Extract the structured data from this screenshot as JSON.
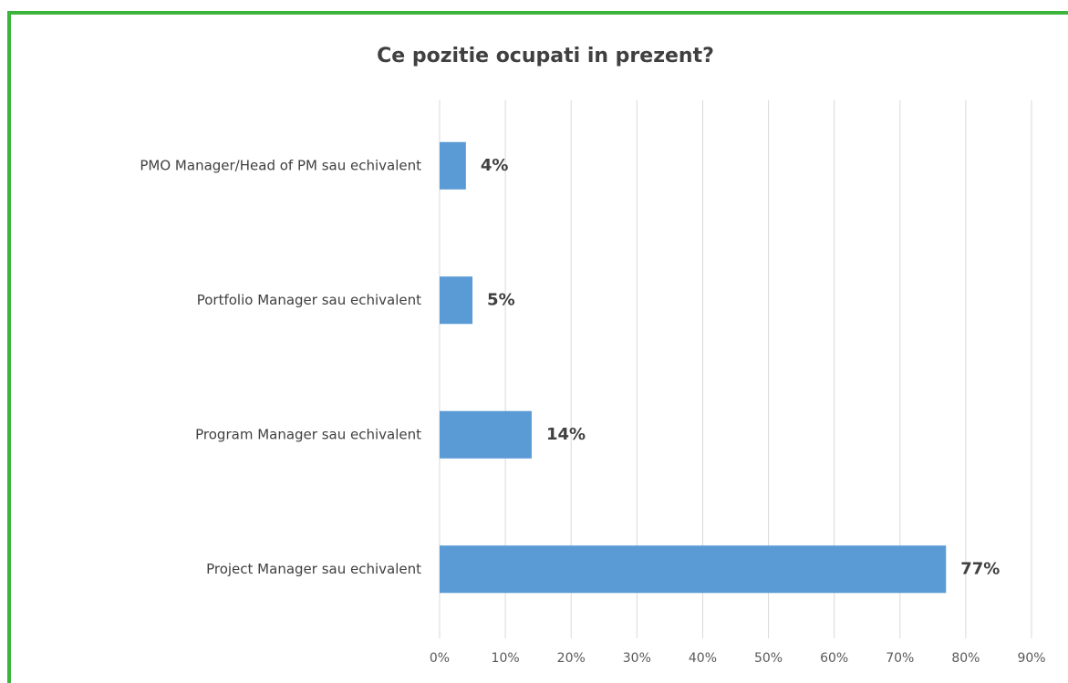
{
  "chart_data": {
    "type": "barh",
    "title": "Ce pozitie ocupati in prezent?",
    "categories": [
      "PMO Manager/Head of PM sau echivalent",
      "Portfolio Manager sau echivalent",
      "Program Manager sau echivalent",
      "Project Manager sau echivalent"
    ],
    "values": [
      4,
      5,
      14,
      77
    ],
    "value_labels": [
      "4%",
      "5%",
      "14%",
      "77%"
    ],
    "color": "#5b9bd5",
    "xlim": [
      0,
      90
    ],
    "xticks": [
      {
        "value": 0,
        "label": "0%"
      },
      {
        "value": 10,
        "label": "10%"
      },
      {
        "value": 20,
        "label": "20%"
      },
      {
        "value": 30,
        "label": "30%"
      },
      {
        "value": 40,
        "label": "40%"
      },
      {
        "value": 50,
        "label": "50%"
      },
      {
        "value": 60,
        "label": "60%"
      },
      {
        "value": 70,
        "label": "70%"
      },
      {
        "value": 80,
        "label": "80%"
      },
      {
        "value": 90,
        "label": "90%"
      }
    ],
    "grid": true
  }
}
